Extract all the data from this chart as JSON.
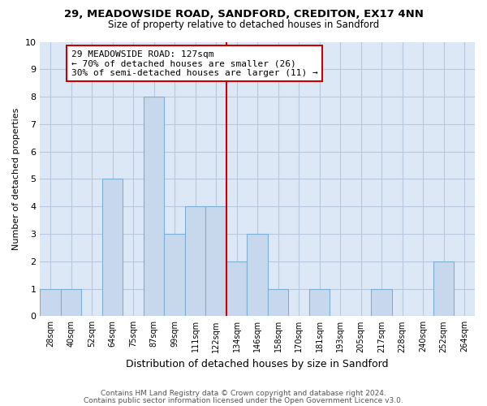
{
  "title": "29, MEADOWSIDE ROAD, SANDFORD, CREDITON, EX17 4NN",
  "subtitle": "Size of property relative to detached houses in Sandford",
  "xlabel": "Distribution of detached houses by size in Sandford",
  "ylabel": "Number of detached properties",
  "bin_labels": [
    "28sqm",
    "40sqm",
    "52sqm",
    "64sqm",
    "75sqm",
    "87sqm",
    "99sqm",
    "111sqm",
    "122sqm",
    "134sqm",
    "146sqm",
    "158sqm",
    "170sqm",
    "181sqm",
    "193sqm",
    "205sqm",
    "217sqm",
    "228sqm",
    "240sqm",
    "252sqm",
    "264sqm"
  ],
  "bar_heights": [
    1,
    1,
    0,
    5,
    0,
    8,
    3,
    4,
    4,
    2,
    3,
    1,
    0,
    1,
    0,
    0,
    1,
    0,
    0,
    2,
    0
  ],
  "bar_color": "#c8d8ec",
  "bar_edge_color": "#7bafd4",
  "vline_x": 8.5,
  "vline_color": "#cc0000",
  "annotation_text": "29 MEADOWSIDE ROAD: 127sqm\n← 70% of detached houses are smaller (26)\n30% of semi-detached houses are larger (11) →",
  "annotation_box_facecolor": "#ffffff",
  "annotation_box_edgecolor": "#cc0000",
  "ylim": [
    0,
    10
  ],
  "footer1": "Contains HM Land Registry data © Crown copyright and database right 2024.",
  "footer2": "Contains public sector information licensed under the Open Government Licence v3.0.",
  "bg_color": "#dce8f5",
  "plot_bg_color": "#dce8f5",
  "grid_color": "#b8c8dc",
  "fig_bg_color": "#ffffff"
}
